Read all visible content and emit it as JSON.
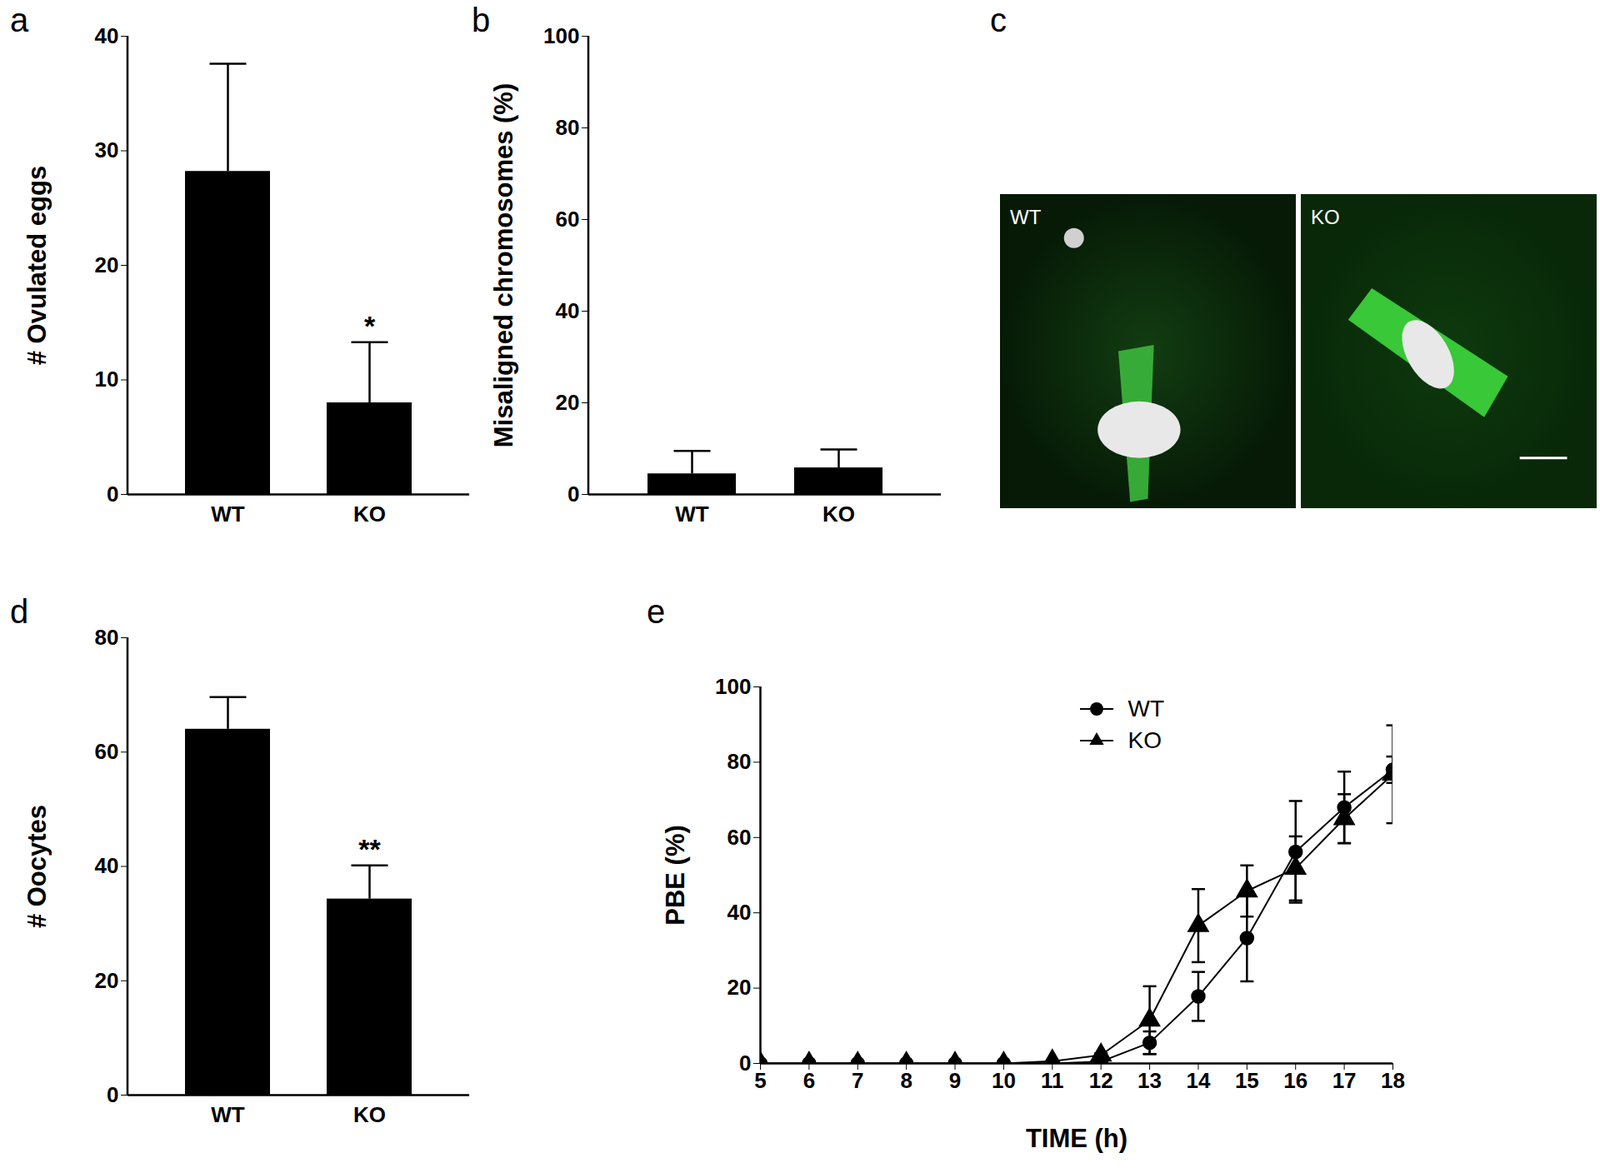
{
  "chart_data": [
    {
      "panel_label": "a",
      "type": "bar",
      "categories": [
        "WT",
        "KO"
      ],
      "values": [
        28.2,
        8.0
      ],
      "errors": [
        9.4,
        5.3
      ],
      "color": "#000000",
      "y_label": "# Ovulated eggs",
      "ylim": [
        0,
        40
      ],
      "yticks": [
        0,
        10,
        20,
        30,
        40
      ],
      "annotations": [
        {
          "category": "KO",
          "text": "*"
        }
      ]
    },
    {
      "panel_label": "b",
      "type": "bar",
      "categories": [
        "WT",
        "KO"
      ],
      "values": [
        4.5,
        5.8
      ],
      "errors": [
        5.0,
        4.0
      ],
      "color": "#000000",
      "y_label": "Misaligned chromosomes (%)",
      "ylim": [
        0,
        100
      ],
      "yticks": [
        0,
        20,
        40,
        60,
        80,
        100
      ]
    },
    {
      "panel_label": "c",
      "type": "image",
      "labels": [
        "WT",
        "KO"
      ]
    },
    {
      "panel_label": "d",
      "type": "bar",
      "categories": [
        "WT",
        "KO"
      ],
      "values": [
        64.0,
        34.3
      ],
      "errors": [
        5.6,
        5.9
      ],
      "color": "#000000",
      "y_label": "# Oocytes",
      "ylim": [
        0,
        80
      ],
      "yticks": [
        0,
        20,
        40,
        60,
        80
      ],
      "annotations": [
        {
          "category": "KO",
          "text": "**"
        }
      ]
    },
    {
      "panel_label": "e",
      "type": "line",
      "x": [
        5,
        6,
        7,
        8,
        9,
        10,
        11,
        12,
        13,
        14,
        15,
        16,
        17,
        18
      ],
      "series": [
        {
          "name": "WT",
          "color": "#000000",
          "marker": "circle",
          "values": [
            0,
            0,
            0,
            0,
            0,
            0,
            0,
            0.5,
            5.5,
            17.8,
            33.3,
            56.2,
            68.0,
            78.0
          ],
          "errors": [
            0,
            0,
            0,
            0,
            0,
            0,
            0,
            0,
            3.0,
            6.5,
            11.5,
            13.5,
            9.5,
            3.5
          ]
        },
        {
          "name": "KO",
          "color": "#000000",
          "marker": "triangle",
          "values": [
            0,
            0,
            0,
            0,
            0,
            0,
            0.6,
            2.2,
            11.5,
            36.6,
            45.8,
            51.8,
            65.0,
            76.8
          ],
          "errors": [
            0,
            0,
            0,
            0,
            0,
            0,
            0,
            0.5,
            9.0,
            9.7,
            6.8,
            8.5,
            6.5,
            13.0
          ]
        }
      ],
      "x_label": "TIME (h)",
      "y_label": "PBE (%)",
      "xlim": [
        5,
        18
      ],
      "xticks": [
        5,
        6,
        7,
        8,
        9,
        10,
        11,
        12,
        13,
        14,
        15,
        16,
        17,
        18
      ],
      "ylim": [
        0,
        100
      ],
      "yticks": [
        0,
        20,
        40,
        60,
        80,
        100
      ],
      "legend": "top"
    }
  ]
}
